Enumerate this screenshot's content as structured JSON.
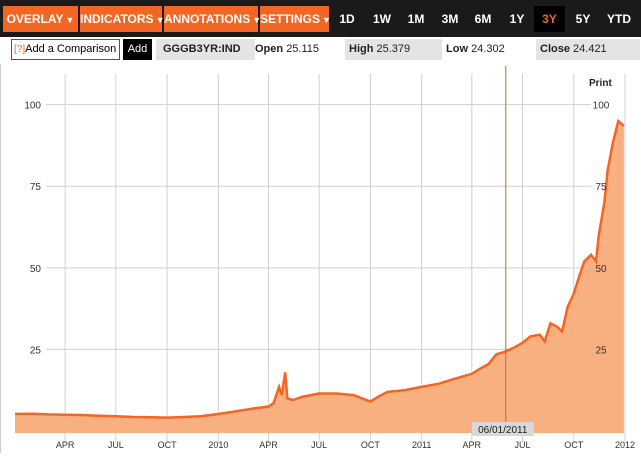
{
  "toolbar": {
    "menus": [
      {
        "label": "OVERLAY"
      },
      {
        "label": "INDICATORS"
      },
      {
        "label": "ANNOTATIONS"
      },
      {
        "label": "SETTINGS"
      }
    ],
    "caret": "▼",
    "ranges": [
      "1D",
      "1W",
      "1M",
      "3M",
      "6M",
      "1Y",
      "3Y",
      "5Y",
      "YTD"
    ],
    "active_range": "3Y"
  },
  "info": {
    "help": "[?]",
    "comparison_placeholder": "Add a Comparison",
    "add_label": "Add",
    "ticker": "GGGB3YR:IND",
    "open_label": "Open",
    "open_value": "25.115",
    "high_label": "High",
    "high_value": "25.379",
    "low_label": "Low",
    "low_value": "24.302",
    "close_label": "Close",
    "close_value": "24.421"
  },
  "chart": {
    "print_label": "Print",
    "crosshair_date": "06/01/2011",
    "colors": {
      "line": "#f26522",
      "fill": "#f9b081",
      "grid": "#d0d0d0"
    }
  },
  "chart_data": {
    "type": "area",
    "ylim": [
      0,
      110
    ],
    "yticks": [
      "25",
      "50",
      "75",
      "100"
    ],
    "ytick_values": [
      25,
      50,
      75,
      100
    ],
    "xticks": [
      "APR",
      "JUL",
      "OCT",
      "2010",
      "APR",
      "JUL",
      "OCT",
      "2011",
      "APR",
      "JUL",
      "OCT",
      "2012"
    ],
    "xtick_dates": [
      "2009-04-01",
      "2009-07-01",
      "2009-10-01",
      "2010-01-01",
      "2010-04-01",
      "2010-07-01",
      "2010-10-01",
      "2011-01-01",
      "2011-04-01",
      "2011-07-01",
      "2011-10-01",
      "2012-01-01"
    ],
    "series": [
      {
        "x": [
          "2009-01-01",
          "2009-02-01",
          "2009-03-01",
          "2009-04-01",
          "2009-05-01",
          "2009-06-01",
          "2009-07-01",
          "2009-08-01",
          "2009-09-01",
          "2009-10-01",
          "2009-11-01",
          "2009-12-01",
          "2010-01-01",
          "2010-02-01",
          "2010-03-01",
          "2010-04-01",
          "2010-04-10",
          "2010-04-20",
          "2010-04-25",
          "2010-05-01",
          "2010-05-05",
          "2010-05-15",
          "2010-06-01",
          "2010-07-01",
          "2010-08-01",
          "2010-09-01",
          "2010-10-01",
          "2010-10-15",
          "2010-11-01",
          "2010-12-01",
          "2011-01-01",
          "2011-02-01",
          "2011-03-01",
          "2011-04-01",
          "2011-04-15",
          "2011-05-01",
          "2011-05-15",
          "2011-06-01",
          "2011-06-15",
          "2011-07-01",
          "2011-07-15",
          "2011-08-01",
          "2011-08-10",
          "2011-08-20",
          "2011-09-01",
          "2011-09-10",
          "2011-09-20",
          "2011-10-01",
          "2011-10-10",
          "2011-10-20",
          "2011-11-01",
          "2011-11-10",
          "2011-11-15",
          "2011-11-25",
          "2011-12-01",
          "2011-12-10",
          "2011-12-20",
          "2011-12-30"
        ],
        "y": [
          5.2,
          5.3,
          5.1,
          5.0,
          4.9,
          4.7,
          4.5,
          4.3,
          4.2,
          4.1,
          4.3,
          4.5,
          5.2,
          6.0,
          6.8,
          7.5,
          8.5,
          13.5,
          11.0,
          18.0,
          10.0,
          9.5,
          10.5,
          11.5,
          11.5,
          11.0,
          9.0,
          10.5,
          12.0,
          12.5,
          13.5,
          14.5,
          16.0,
          17.5,
          19.0,
          20.5,
          23.5,
          24.4,
          25.5,
          27.0,
          29.0,
          29.5,
          27.5,
          33.0,
          32.0,
          30.5,
          38.0,
          42.0,
          47.0,
          52.0,
          54.0,
          52.0,
          60.0,
          70.0,
          80.0,
          88.0,
          95.0,
          93.5
        ]
      }
    ]
  }
}
